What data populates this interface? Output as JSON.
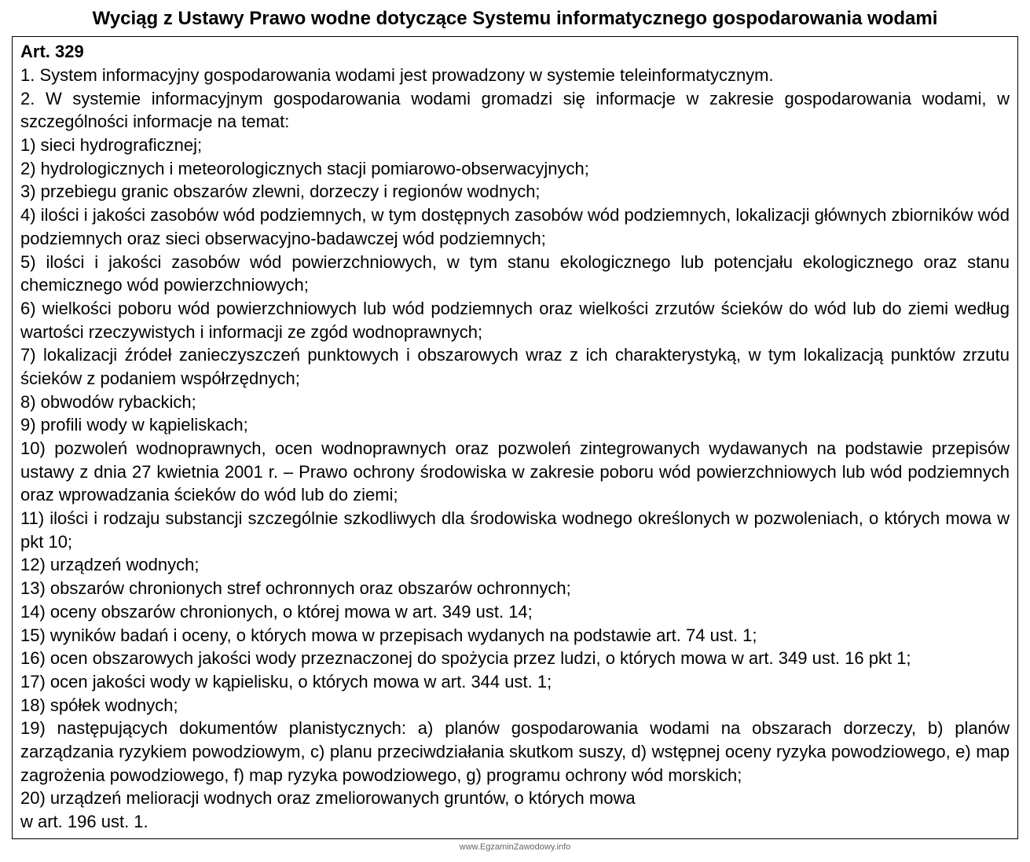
{
  "title": "Wyciąg z Ustawy Prawo wodne dotyczące Systemu informatycznego gospodarowania wodami",
  "article_header": "Art. 329",
  "paragraphs": [
    "1.  System  informacyjny  gospodarowania  wodami  jest  prowadzony w systemie teleinformatycznym.",
    "2. W systemie informacyjnym gospodarowania wodami gromadzi się informacje w zakresie gospodarowania wodami, w szczególności informacje na temat:",
    "1) sieci hydrograficznej;",
    "2) hydrologicznych i meteorologicznych stacji pomiarowo-obserwacyjnych;",
    "3) przebiegu granic obszarów zlewni, dorzeczy i regionów wodnych;",
    "4) ilości i jakości zasobów wód podziemnych, w tym dostępnych zasobów wód podziemnych, lokalizacji głównych zbiorników wód podziemnych oraz  sieci obserwacyjno-badawczej wód podziemnych;",
    "5) ilości i jakości zasobów wód powierzchniowych, w tym stanu ekologicznego lub potencjału ekologicznego oraz stanu chemicznego wód powierzchniowych;",
    "6) wielkości poboru wód powierzchniowych lub wód podziemnych oraz wielkości zrzutów ścieków do  wód  lub do ziemi według  wartości  rzeczywistych i informacji ze zgód wodnoprawnych;",
    "7) lokalizacji  źródeł  zanieczyszczeń  punktowych i obszarowych wraz z ich charakterystyką, w tym lokalizacją punktów  zrzutu  ścieków  z podaniem współrzędnych;",
    "8) obwodów rybackich;",
    "9) profili wody w kąpieliskach;",
    "10)  pozwoleń   wodnoprawnych,  ocen  wodnoprawnych  oraz   pozwoleń  zintegrowanych  wydawanych  na podstawie przepisów ustawy z dnia 27 kwietnia 2001 r. – Prawo ochrony środowiska w zakresie poboru wód powierzchniowych lub wód podziemnych oraz wprowadzania ścieków do wód lub do ziemi;",
    "11) ilości i rodzaju substancji szczególnie  szkodliwych dla  środowiska wodnego określonych w pozwoleniach, o których mowa w pkt 10;",
    "12) urządzeń wodnych;",
    "13) obszarów chronionych stref ochronnych oraz obszarów ochronnych;",
    "14) oceny obszarów chronionych, o której mowa w art. 349 ust. 14;",
    "15) wyników badań i oceny, o których mowa w przepisach wydanych na podstawie art. 74 ust. 1;",
    "16) ocen  obszarowych  jakości  wody  przeznaczonej  do  spożycia  przez  ludzi, o których mowa w art. 349 ust. 16 pkt 1;",
    "17) ocen jakości wody w kąpielisku, o których mowa w art. 344 ust. 1;",
    "18) spółek wodnych;",
    "19) następujących dokumentów planistycznych: a) planów gospodarowania wodami na obszarach dorzeczy, b) planów zarządzania ryzykiem powodziowym, c) planu przeciwdziałania skutkom suszy, d) wstępnej oceny ryzyka powodziowego, e) map zagrożenia powodziowego, f) map ryzyka powodziowego, g) programu ochrony wód morskich;",
    "20) urządzeń melioracji wodnych oraz zmeliorowanych gruntów, o których mowa",
    "w art. 196 ust. 1."
  ],
  "footer": "www.EgzaminZawodowy.info",
  "styling": {
    "title_fontsize": 24,
    "body_fontsize": 22,
    "footer_fontsize": 11,
    "text_color": "#000000",
    "background_color": "#ffffff",
    "border_color": "#000000",
    "footer_color": "#666666",
    "font_family": "Arial",
    "line_height": 1.35,
    "text_align": "justify"
  }
}
